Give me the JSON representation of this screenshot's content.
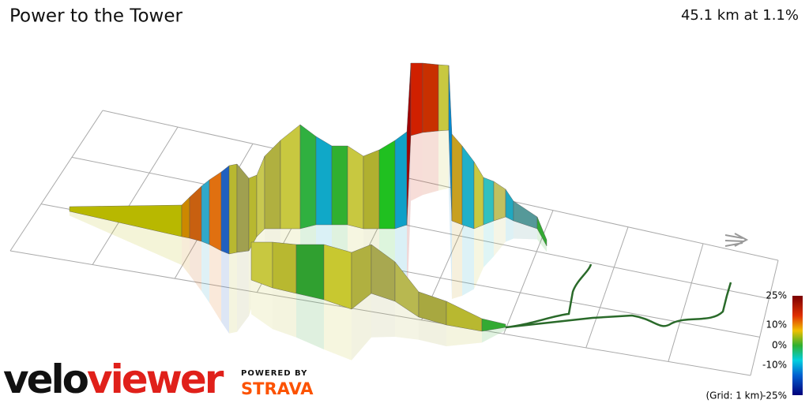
{
  "header": {
    "title": "Power to the Tower",
    "summary": "45.1 km at 1.1%"
  },
  "legend": {
    "ticks": [
      "25%",
      "10%",
      "0%",
      "-10%",
      "-25%"
    ],
    "grid_note": "(Grid: 1 km)"
  },
  "branding": {
    "logo_part1": "velo",
    "logo_part2": "viewer",
    "powered_by": "POWERED BY",
    "partner": "STRAVA"
  }
}
